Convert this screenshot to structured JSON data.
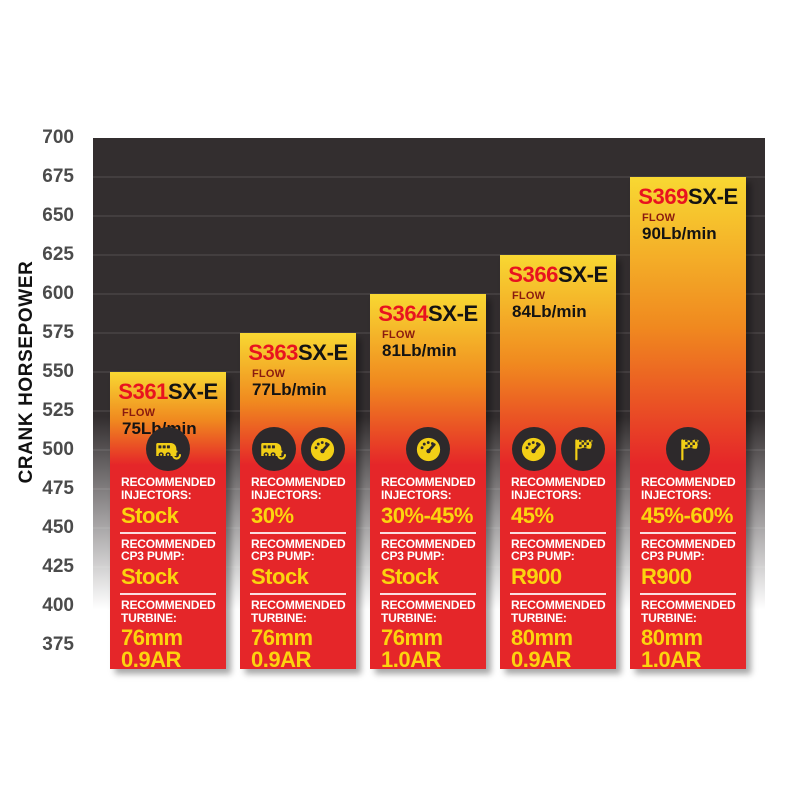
{
  "chart_data": {
    "type": "bar",
    "ylabel": "CRANK HORSEPOWER",
    "ylim": [
      375,
      700
    ],
    "ytick_step": 25,
    "yticks": [
      700,
      675,
      650,
      625,
      600,
      575,
      550,
      525,
      500,
      475,
      450,
      425,
      400,
      375
    ],
    "grid": "horizontal",
    "legend": "none",
    "categories": [
      "S361SX-E",
      "S363SX-E",
      "S364SX-E",
      "S366SX-E",
      "S369SX-E"
    ],
    "values": [
      550,
      575,
      600,
      625,
      675
    ],
    "section_labels": {
      "recommended": "RECOMMENDED",
      "injectors": "INJECTORS:",
      "cp3": "CP3 PUMP:",
      "turbine": "TURBINE:"
    },
    "models": [
      {
        "model_prefix": "S361",
        "model_suffix": "SX-E",
        "flow_label": "FLOW",
        "flow_value": "75Lb/min",
        "crank_hp": 550,
        "icons": [
          "rv-icon"
        ],
        "injectors": "Stock",
        "cp3_pump": "Stock",
        "turbine_line1": "76mm",
        "turbine_line2": "0.9AR"
      },
      {
        "model_prefix": "S363",
        "model_suffix": "SX-E",
        "flow_label": "FLOW",
        "flow_value": "77Lb/min",
        "crank_hp": 575,
        "icons": [
          "rv-icon",
          "gauge-icon"
        ],
        "injectors": "30%",
        "cp3_pump": "Stock",
        "turbine_line1": "76mm",
        "turbine_line2": "0.9AR"
      },
      {
        "model_prefix": "S364",
        "model_suffix": "SX-E",
        "flow_label": "FLOW",
        "flow_value": "81Lb/min",
        "crank_hp": 600,
        "icons": [
          "gauge-icon"
        ],
        "injectors": "30%-45%",
        "cp3_pump": "Stock",
        "turbine_line1": "76mm",
        "turbine_line2": "1.0AR"
      },
      {
        "model_prefix": "S366",
        "model_suffix": "SX-E",
        "flow_label": "FLOW",
        "flow_value": "84Lb/min",
        "crank_hp": 625,
        "icons": [
          "gauge-icon",
          "flag-icon"
        ],
        "injectors": "45%",
        "cp3_pump": "R900",
        "turbine_line1": "80mm",
        "turbine_line2": "0.9AR"
      },
      {
        "model_prefix": "S369",
        "model_suffix": "SX-E",
        "flow_label": "FLOW",
        "flow_value": "90Lb/min",
        "crank_hp": 675,
        "icons": [
          "flag-icon"
        ],
        "injectors": "45%-60%",
        "cp3_pump": "R900",
        "turbine_line1": "80mm",
        "turbine_line2": "1.0AR"
      }
    ],
    "colors": {
      "bar_top_yellow": "#f8d832",
      "bar_mid_orange": "#f0891f",
      "bar_red": "#e52629",
      "value_yellow": "#fcd40e",
      "label_white": "#ffffff",
      "model_red": "#e8131f",
      "model_black": "#131313",
      "flow_red": "#8a1a10",
      "plot_bg_dark": "#332e2f",
      "icon_circle": "#2d292b",
      "icon_glyph_yellow": "#f2cf16",
      "tick_gray": "#4b4b4b"
    }
  }
}
